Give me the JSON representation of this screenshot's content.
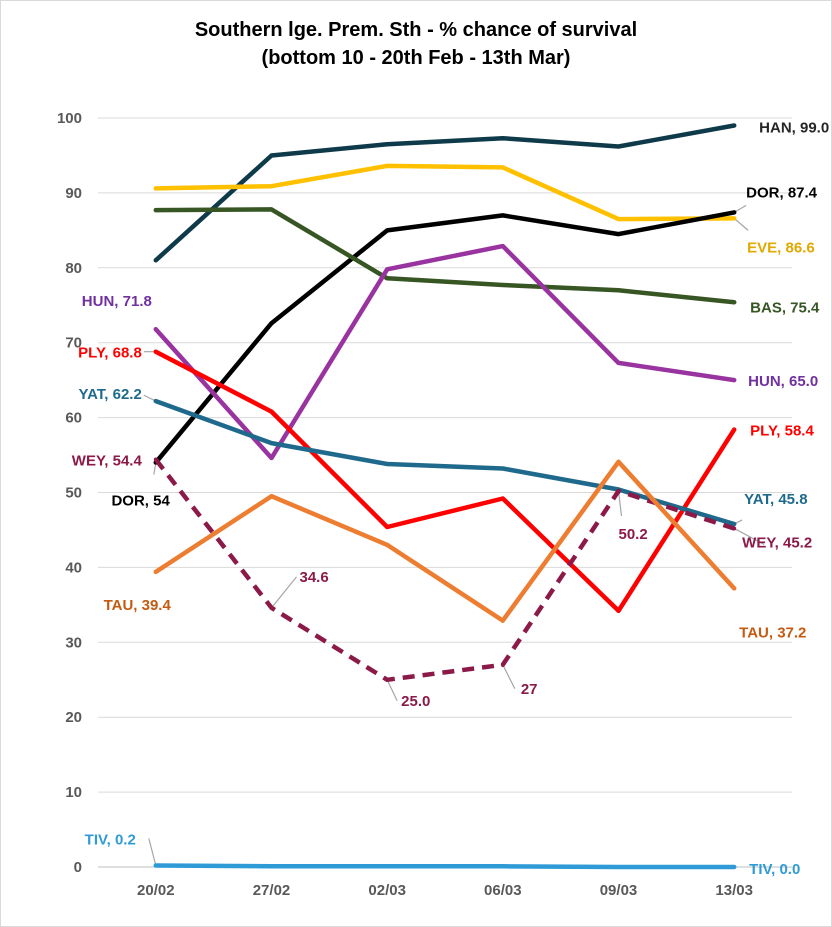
{
  "chart_data": {
    "type": "line",
    "title": "Southern lge. Prem. Sth - % chance of survival",
    "subtitle": "(bottom 10 - 20th Feb - 13th Mar)",
    "xlabel": "",
    "ylabel": "",
    "categories": [
      "20/02",
      "27/02",
      "02/03",
      "06/03",
      "09/03",
      "13/03"
    ],
    "ylim": [
      0,
      100
    ],
    "yticks": [
      "0",
      "10",
      "20",
      "30",
      "40",
      "50",
      "60",
      "70",
      "80",
      "90",
      "100"
    ],
    "grid": true,
    "legend": "none",
    "series": [
      {
        "name": "HAN",
        "color": "#0e3a4a",
        "values": [
          81.0,
          95.0,
          96.5,
          97.3,
          96.2,
          99.0
        ]
      },
      {
        "name": "EVE",
        "color": "#ffc000",
        "values": [
          90.6,
          90.9,
          93.6,
          93.4,
          86.5,
          86.6
        ]
      },
      {
        "name": "DOR",
        "color": "#000000",
        "values": [
          54.0,
          72.6,
          85.0,
          87.0,
          84.5,
          87.4
        ]
      },
      {
        "name": "BAS",
        "color": "#375623",
        "values": [
          87.7,
          87.8,
          78.6,
          77.7,
          77.0,
          75.4
        ]
      },
      {
        "name": "HUN",
        "color": "#9933a0",
        "values": [
          71.8,
          54.6,
          79.8,
          82.9,
          67.3,
          65.0
        ]
      },
      {
        "name": "PLY",
        "color": "#ff0000",
        "values": [
          68.8,
          60.8,
          45.4,
          49.2,
          34.2,
          58.4
        ]
      },
      {
        "name": "YAT",
        "color": "#1f6a8c",
        "values": [
          62.2,
          56.6,
          53.8,
          53.2,
          50.4,
          45.8
        ]
      },
      {
        "name": "WEY",
        "color": "#8b1a48",
        "dashed": true,
        "values": [
          54.4,
          34.6,
          25.0,
          27.0,
          50.2,
          45.2
        ]
      },
      {
        "name": "TAU",
        "color": "#ed7d31",
        "values": [
          39.4,
          49.5,
          43.0,
          32.9,
          54.1,
          37.2
        ]
      },
      {
        "name": "TIV",
        "color": "#2e9bd6",
        "values": [
          0.2,
          0.1,
          0.1,
          0.1,
          0.0,
          0.0
        ]
      }
    ],
    "annotations": [
      {
        "text": "HAN, 99.0",
        "series": "HAN",
        "index": 5,
        "color": "#262626"
      },
      {
        "text": "DOR, 87.4",
        "series": "DOR",
        "index": 5,
        "color": "#000000"
      },
      {
        "text": "EVE, 86.6",
        "series": "EVE",
        "index": 5,
        "color": "#e0a800"
      },
      {
        "text": "BAS, 75.4",
        "series": "BAS",
        "index": 5,
        "color": "#375623"
      },
      {
        "text": "HUN, 65.0",
        "series": "HUN",
        "index": 5,
        "color": "#7030a0"
      },
      {
        "text": "PLY, 58.4",
        "series": "PLY",
        "index": 5,
        "color": "#ff0000"
      },
      {
        "text": "YAT, 45.8",
        "series": "YAT",
        "index": 5,
        "color": "#1f6a8c"
      },
      {
        "text": "WEY, 45.2",
        "series": "WEY",
        "index": 5,
        "color": "#8b1a48"
      },
      {
        "text": "TAU, 37.2",
        "series": "TAU",
        "index": 5,
        "color": "#c55a11"
      },
      {
        "text": "TIV, 0.0",
        "series": "TIV",
        "index": 5,
        "color": "#2e9bd6"
      },
      {
        "text": "HUN, 71.8",
        "series": "HUN",
        "index": 0,
        "color": "#7030a0"
      },
      {
        "text": "PLY, 68.8",
        "series": "PLY",
        "index": 0,
        "color": "#ff0000"
      },
      {
        "text": "YAT, 62.2",
        "series": "YAT",
        "index": 0,
        "color": "#1f6a8c"
      },
      {
        "text": "WEY, 54.4",
        "series": "WEY",
        "index": 0,
        "color": "#8b1a48"
      },
      {
        "text": "DOR, 54",
        "series": "DOR",
        "index": 0,
        "color": "#000000"
      },
      {
        "text": "TAU, 39.4",
        "series": "TAU",
        "index": 0,
        "color": "#c55a11"
      },
      {
        "text": "TIV, 0.2",
        "series": "TIV",
        "index": 0,
        "color": "#2e9bd6"
      },
      {
        "text": "34.6",
        "series": "WEY",
        "index": 1,
        "color": "#8b1a48"
      },
      {
        "text": "25.0",
        "series": "WEY",
        "index": 2,
        "color": "#8b1a48"
      },
      {
        "text": "27",
        "series": "WEY",
        "index": 3,
        "color": "#8b1a48"
      },
      {
        "text": "50.2",
        "series": "WEY",
        "index": 4,
        "color": "#8b1a48"
      }
    ]
  }
}
